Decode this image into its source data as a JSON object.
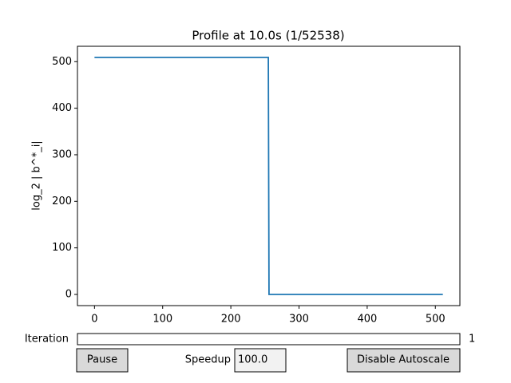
{
  "chart_data": {
    "type": "line",
    "title": "Profile at 10.0s (1/52538)",
    "ylabel": "log_2 | b^*_i|",
    "x": [
      0,
      255,
      256,
      511
    ],
    "values": [
      509,
      509,
      0,
      0
    ],
    "color": "#1f77b4",
    "xlim": [
      -25,
      536
    ],
    "ylim": [
      -24,
      533
    ],
    "xticks": [
      0,
      100,
      200,
      300,
      400,
      500
    ],
    "yticks": [
      0,
      100,
      200,
      300,
      400,
      500
    ],
    "grid": false
  },
  "controls": {
    "slider_label": "Iteration",
    "slider_value": "1",
    "pause_button": "Pause",
    "speedup_label": "Speedup",
    "speedup_value": "100.0",
    "autoscale_button": "Disable Autoscale"
  }
}
